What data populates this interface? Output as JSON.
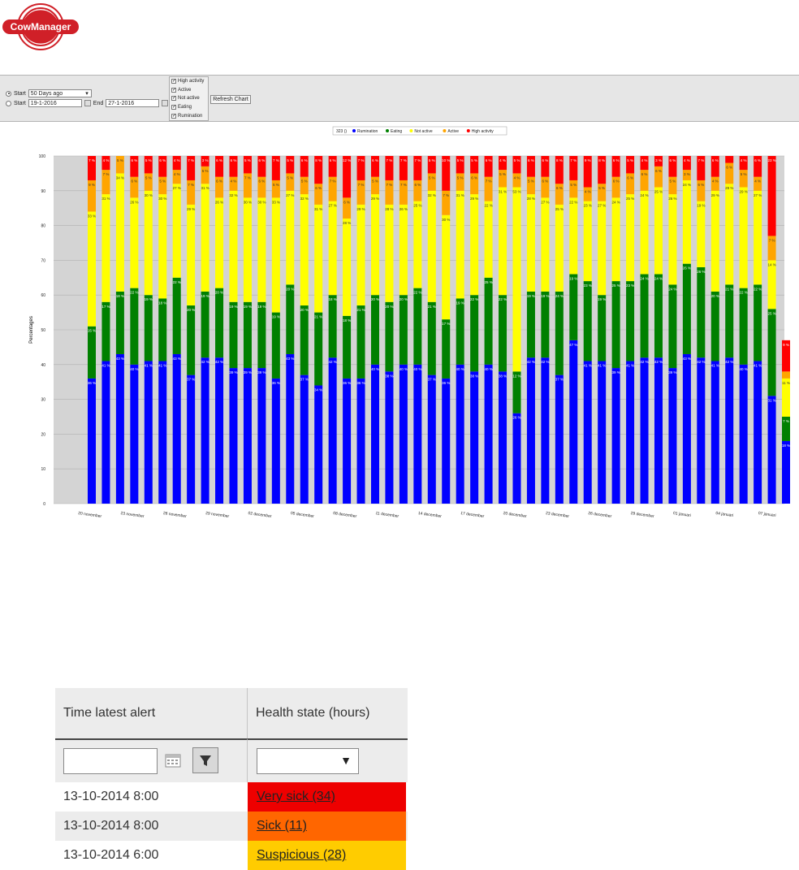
{
  "logo": {
    "text": "CowManager"
  },
  "controls": {
    "start_label": "Start",
    "period_select": "50 Days ago",
    "start_date": "19-1-2016",
    "end_label": "End",
    "end_date": "27-1-2016",
    "checkboxes": [
      "High activity",
      "Active",
      "Not active",
      "Eating",
      "Rumination"
    ],
    "refresh_label": "Refresh Chart"
  },
  "chart_data": {
    "type": "bar",
    "stacked": true,
    "legend_title": "323 ()",
    "legend": [
      "Rumination",
      "Eating",
      "Not active",
      "Active",
      "High activity"
    ],
    "colors": {
      "Rumination": "#0000ff",
      "Eating": "#008000",
      "Not active": "#ffff00",
      "Active": "#ffa500",
      "High activity": "#ff0000"
    },
    "ylabel": "Percentages",
    "ylim": [
      0,
      100
    ],
    "yticks": [
      0,
      10,
      20,
      30,
      40,
      50,
      60,
      70,
      80,
      90,
      100
    ],
    "xticks": [
      {
        "label": "20 november",
        "index": 0
      },
      {
        "label": "23 november",
        "index": 3
      },
      {
        "label": "26 november",
        "index": 6
      },
      {
        "label": "29 november",
        "index": 9
      },
      {
        "label": "02 december",
        "index": 12
      },
      {
        "label": "05 december",
        "index": 15
      },
      {
        "label": "08 december",
        "index": 18
      },
      {
        "label": "11 december",
        "index": 21
      },
      {
        "label": "14 december",
        "index": 24
      },
      {
        "label": "17 december",
        "index": 27
      },
      {
        "label": "20 december",
        "index": 30
      },
      {
        "label": "23 december",
        "index": 33
      },
      {
        "label": "26 december",
        "index": 36
      },
      {
        "label": "29 december",
        "index": 39
      },
      {
        "label": "01 januari",
        "index": 42
      },
      {
        "label": "04 januari",
        "index": 45
      },
      {
        "label": "07 januari",
        "index": 48
      }
    ],
    "series": [
      {
        "name": "Rumination",
        "values": [
          36,
          41,
          43,
          40,
          41,
          41,
          43,
          37,
          42,
          42,
          39,
          39,
          39,
          36,
          43,
          37,
          34,
          42,
          36,
          36,
          40,
          38,
          40,
          40,
          37,
          36,
          40,
          38,
          40,
          38,
          26,
          42,
          42,
          37,
          47,
          41,
          41,
          39,
          41,
          42,
          42,
          39,
          43,
          42,
          41,
          42,
          40,
          41,
          31,
          18
        ]
      },
      {
        "name": "Eating",
        "values": [
          15,
          17,
          18,
          22,
          19,
          18,
          22,
          20,
          19,
          20,
          19,
          19,
          19,
          19,
          20,
          20,
          21,
          18,
          18,
          21,
          20,
          20,
          20,
          22,
          21,
          17,
          19,
          22,
          25,
          22,
          12,
          19,
          19,
          24,
          19,
          23,
          19,
          25,
          23,
          24,
          24,
          24,
          26,
          26,
          20,
          21,
          22,
          22,
          25,
          7
        ]
      },
      {
        "name": "Not active",
        "values": [
          33,
          31,
          34,
          26,
          30,
          30,
          27,
          29,
          31,
          26,
          32,
          30,
          30,
          33,
          27,
          32,
          31,
          27,
          28,
          29,
          29,
          28,
          26,
          25,
          32,
          30,
          31,
          29,
          22,
          31,
          53,
          28,
          27,
          25,
          22,
          23,
          27,
          24,
          25,
          24,
          25,
          26,
          24,
          19,
          29,
          29,
          29,
          27,
          14,
          11
        ]
      },
      {
        "name": "Active",
        "values": [
          9,
          7,
          5,
          6,
          5,
          5,
          4,
          7,
          5,
          6,
          4,
          7,
          6,
          5,
          5,
          5,
          6,
          7,
          6,
          7,
          5,
          7,
          7,
          6,
          5,
          7,
          5,
          6,
          7,
          5,
          4,
          5,
          6,
          6,
          5,
          4,
          5,
          6,
          6,
          6,
          6,
          5,
          3,
          6,
          4,
          6,
          5,
          4,
          7,
          2
        ]
      },
      {
        "name": "High activity",
        "values": [
          7,
          4,
          0,
          6,
          5,
          6,
          4,
          7,
          3,
          6,
          6,
          5,
          6,
          7,
          5,
          6,
          8,
          6,
          12,
          7,
          6,
          7,
          7,
          7,
          5,
          10,
          5,
          5,
          6,
          4,
          5,
          6,
          6,
          8,
          7,
          9,
          8,
          6,
          5,
          4,
          3,
          6,
          4,
          7,
          6,
          2,
          4,
          6,
          23,
          9
        ]
      }
    ]
  },
  "grid": {
    "columns": [
      "Time latest alert",
      "Health state (hours)"
    ],
    "rows": [
      {
        "time": "13-10-2014 8:00",
        "state": "Very sick (34)",
        "color": "#ee0000",
        "bg": "#ffffff"
      },
      {
        "time": "13-10-2014 8:00",
        "state": "Sick (11)",
        "color": "#ff6600",
        "bg": "#ececec"
      },
      {
        "time": "13-10-2014 6:00",
        "state": "Suspicious (28)",
        "color": "#ffcc00",
        "bg": "#ffffff"
      }
    ]
  }
}
